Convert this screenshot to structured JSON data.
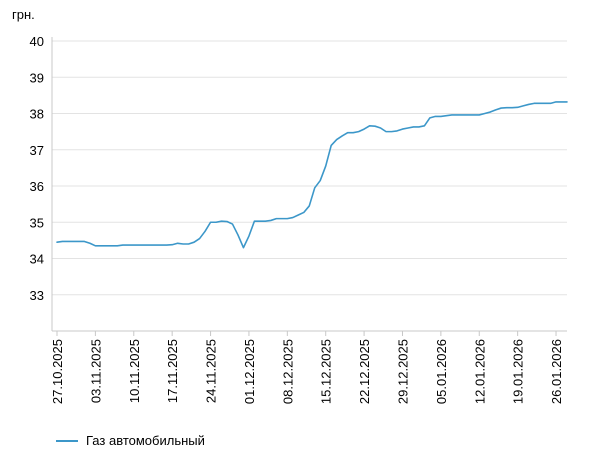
{
  "chart_data": {
    "type": "line",
    "y_unit": "грн.",
    "ylim": [
      32,
      40
    ],
    "yticks": [
      33,
      34,
      35,
      36,
      37,
      38,
      39,
      40
    ],
    "grid": "horizontal",
    "legend_position": "bottom-left",
    "x_ticks": [
      {
        "date": "2025-10-27",
        "label": "27.10.2025"
      },
      {
        "date": "2025-11-03",
        "label": "03.11.2025"
      },
      {
        "date": "2025-11-10",
        "label": "10.11.2025"
      },
      {
        "date": "2025-11-17",
        "label": "17.11.2025"
      },
      {
        "date": "2025-11-24",
        "label": "24.11.2025"
      },
      {
        "date": "2025-12-01",
        "label": "01.12.2025"
      },
      {
        "date": "2025-12-08",
        "label": "08.12.2025"
      },
      {
        "date": "2025-12-15",
        "label": "15.12.2025"
      },
      {
        "date": "2025-12-22",
        "label": "22.12.2025"
      },
      {
        "date": "2025-12-29",
        "label": "29.12.2025"
      },
      {
        "date": "2026-01-05",
        "label": "05.01.2026"
      },
      {
        "date": "2026-01-12",
        "label": "12.01.2026"
      },
      {
        "date": "2026-01-19",
        "label": "19.01.2026"
      },
      {
        "date": "2026-01-26",
        "label": "26.01.2026"
      }
    ],
    "xlim": [
      "2025-10-27",
      "2026-01-28"
    ],
    "series": [
      {
        "name": "Газ автомобильный",
        "color": "#3c97c9",
        "points": [
          [
            "2025-10-27",
            34.45
          ],
          [
            "2025-10-28",
            34.47
          ],
          [
            "2025-10-29",
            34.47
          ],
          [
            "2025-10-30",
            34.47
          ],
          [
            "2025-10-31",
            34.47
          ],
          [
            "2025-11-01",
            34.47
          ],
          [
            "2025-11-02",
            34.42
          ],
          [
            "2025-11-03",
            34.35
          ],
          [
            "2025-11-04",
            34.35
          ],
          [
            "2025-11-05",
            34.35
          ],
          [
            "2025-11-06",
            34.35
          ],
          [
            "2025-11-07",
            34.35
          ],
          [
            "2025-11-08",
            34.37
          ],
          [
            "2025-11-09",
            34.37
          ],
          [
            "2025-11-10",
            34.37
          ],
          [
            "2025-11-11",
            34.37
          ],
          [
            "2025-11-12",
            34.37
          ],
          [
            "2025-11-13",
            34.37
          ],
          [
            "2025-11-14",
            34.37
          ],
          [
            "2025-11-15",
            34.37
          ],
          [
            "2025-11-16",
            34.37
          ],
          [
            "2025-11-17",
            34.38
          ],
          [
            "2025-11-18",
            34.42
          ],
          [
            "2025-11-19",
            34.4
          ],
          [
            "2025-11-20",
            34.4
          ],
          [
            "2025-11-21",
            34.45
          ],
          [
            "2025-11-22",
            34.55
          ],
          [
            "2025-11-23",
            34.75
          ],
          [
            "2025-11-24",
            35.0
          ],
          [
            "2025-11-25",
            35.0
          ],
          [
            "2025-11-26",
            35.03
          ],
          [
            "2025-11-27",
            35.02
          ],
          [
            "2025-11-28",
            34.95
          ],
          [
            "2025-11-29",
            34.65
          ],
          [
            "2025-11-30",
            34.3
          ],
          [
            "2025-12-01",
            34.62
          ],
          [
            "2025-12-02",
            35.03
          ],
          [
            "2025-12-03",
            35.03
          ],
          [
            "2025-12-04",
            35.03
          ],
          [
            "2025-12-05",
            35.05
          ],
          [
            "2025-12-06",
            35.1
          ],
          [
            "2025-12-07",
            35.1
          ],
          [
            "2025-12-08",
            35.1
          ],
          [
            "2025-12-09",
            35.13
          ],
          [
            "2025-12-10",
            35.2
          ],
          [
            "2025-12-11",
            35.27
          ],
          [
            "2025-12-12",
            35.45
          ],
          [
            "2025-12-13",
            35.95
          ],
          [
            "2025-12-14",
            36.15
          ],
          [
            "2025-12-15",
            36.55
          ],
          [
            "2025-12-16",
            37.12
          ],
          [
            "2025-12-17",
            37.28
          ],
          [
            "2025-12-18",
            37.38
          ],
          [
            "2025-12-19",
            37.47
          ],
          [
            "2025-12-20",
            37.47
          ],
          [
            "2025-12-21",
            37.5
          ],
          [
            "2025-12-22",
            37.57
          ],
          [
            "2025-12-23",
            37.66
          ],
          [
            "2025-12-24",
            37.65
          ],
          [
            "2025-12-25",
            37.6
          ],
          [
            "2025-12-26",
            37.5
          ],
          [
            "2025-12-27",
            37.5
          ],
          [
            "2025-12-28",
            37.52
          ],
          [
            "2025-12-29",
            37.57
          ],
          [
            "2025-12-30",
            37.6
          ],
          [
            "2025-12-31",
            37.63
          ],
          [
            "2026-01-01",
            37.63
          ],
          [
            "2026-01-02",
            37.66
          ],
          [
            "2026-01-03",
            37.88
          ],
          [
            "2026-01-04",
            37.92
          ],
          [
            "2026-01-05",
            37.92
          ],
          [
            "2026-01-06",
            37.94
          ],
          [
            "2026-01-07",
            37.96
          ],
          [
            "2026-01-08",
            37.96
          ],
          [
            "2026-01-09",
            37.96
          ],
          [
            "2026-01-10",
            37.96
          ],
          [
            "2026-01-11",
            37.96
          ],
          [
            "2026-01-12",
            37.96
          ],
          [
            "2026-01-13",
            38.0
          ],
          [
            "2026-01-14",
            38.04
          ],
          [
            "2026-01-15",
            38.1
          ],
          [
            "2026-01-16",
            38.15
          ],
          [
            "2026-01-17",
            38.16
          ],
          [
            "2026-01-18",
            38.16
          ],
          [
            "2026-01-19",
            38.17
          ],
          [
            "2026-01-20",
            38.21
          ],
          [
            "2026-01-21",
            38.25
          ],
          [
            "2026-01-22",
            38.28
          ],
          [
            "2026-01-23",
            38.28
          ],
          [
            "2026-01-24",
            38.28
          ],
          [
            "2026-01-25",
            38.28
          ],
          [
            "2026-01-26",
            38.32
          ],
          [
            "2026-01-27",
            38.32
          ],
          [
            "2026-01-28",
            38.32
          ]
        ]
      }
    ]
  }
}
